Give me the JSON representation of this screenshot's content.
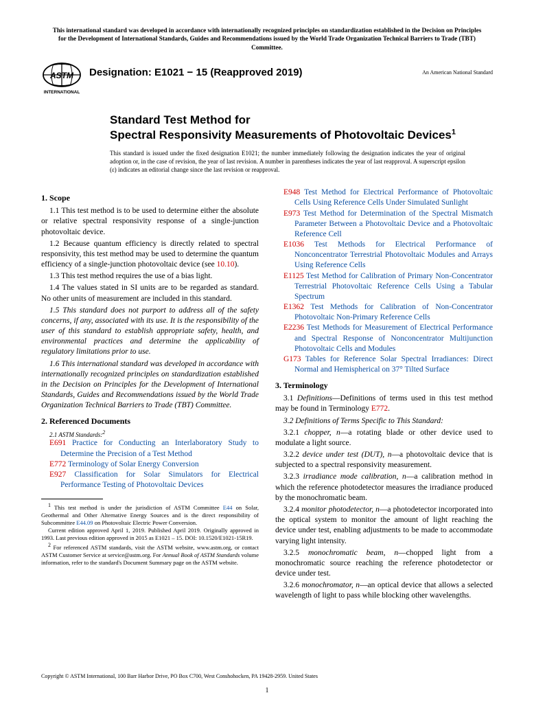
{
  "banner": "This international standard was developed in accordance with internationally recognized principles on standardization established in the Decision on Principles for the Development of International Standards, Guides and Recommendations issued by the World Trade Organization Technical Barriers to Trade (TBT) Committee.",
  "designation": "Designation: E1021 − 15 (Reapproved 2019)",
  "ans": "An American National Standard",
  "title_line1": "Standard Test Method for",
  "title_line2": "Spectral Responsivity Measurements of Photovoltaic Devices",
  "title_sup": "1",
  "issuance": "This standard is issued under the fixed designation E1021; the number immediately following the designation indicates the year of original adoption or, in the case of revision, the year of last revision. A number in parentheses indicates the year of last reapproval. A superscript epsilon (ε) indicates an editorial change since the last revision or reapproval.",
  "s1_head": "1. Scope",
  "s1_1": "1.1 This test method is to be used to determine either the absolute or relative spectral responsivity response of a single-junction photovoltaic device.",
  "s1_2a": "1.2 Because quantum efficiency is directly related to spectral responsivity, this test method may be used to determine the quantum efficiency of a single-junction photovoltaic device (see ",
  "s1_2_ref": "10.10",
  "s1_2b": ").",
  "s1_3": "1.3 This test method requires the use of a bias light.",
  "s1_4": "1.4 The values stated in SI units are to be regarded as standard. No other units of measurement are included in this standard.",
  "s1_5": "1.5 This standard does not purport to address all of the safety concerns, if any, associated with its use. It is the responsibility of the user of this standard to establish appropriate safety, health, and environmental practices and determine the applicability of regulatory limitations prior to use.",
  "s1_6": "1.6 This international standard was developed in accordance with internationally recognized principles on standardization established in the Decision on Principles for the Development of International Standards, Guides and Recommendations issued by the World Trade Organization Technical Barriers to Trade (TBT) Committee.",
  "s2_head": "2. Referenced Documents",
  "s2_sub": "ASTM Standards:",
  "s2_sup": "2",
  "refs_left": [
    {
      "code": "E691",
      "title": "Practice for Conducting an Interlaboratory Study to Determine the Precision of a Test Method"
    },
    {
      "code": "E772",
      "title": "Terminology of Solar Energy Conversion"
    },
    {
      "code": "E927",
      "title": "Classification for Solar Simulators for Electrical Performance Testing of Photovoltaic Devices"
    }
  ],
  "refs_right": [
    {
      "code": "E948",
      "title": "Test Method for Electrical Performance of Photovoltaic Cells Using Reference Cells Under Simulated Sunlight"
    },
    {
      "code": "E973",
      "title": "Test Method for Determination of the Spectral Mismatch Parameter Between a Photovoltaic Device and a Photovoltaic Reference Cell"
    },
    {
      "code": "E1036",
      "title": "Test Methods for Electrical Performance of Nonconcentrator Terrestrial Photovoltaic Modules and Arrays Using Reference Cells"
    },
    {
      "code": "E1125",
      "title": "Test Method for Calibration of Primary Non-Concentrator Terrestrial Photovoltaic Reference Cells Using a Tabular Spectrum"
    },
    {
      "code": "E1362",
      "title": "Test Methods for Calibration of Non-Concentrator Photovoltaic Non-Primary Reference Cells"
    },
    {
      "code": "E2236",
      "title": "Test Methods for Measurement of Electrical Performance and Spectral Response of Nonconcentrator Multijunction Photovoltaic Cells and Modules"
    },
    {
      "code": "G173",
      "title": "Tables for Reference Solar Spectral Irradiances: Direct Normal and Hemispherical on 37° Tilted Surface"
    }
  ],
  "s3_head": "3. Terminology",
  "s3_1a": "3.1 ",
  "s3_1_defs": "Definitions",
  "s3_1b": "—Definitions of terms used in this test method may be found in Terminology ",
  "s3_1_ref": "E772",
  "s3_1c": ".",
  "s3_2_head": "3.2 Definitions of Terms Specific to This Standard:",
  "terms": [
    {
      "num": "3.2.1",
      "term": "chopper, n",
      "def": "—a rotating blade or other device used to modulate a light source."
    },
    {
      "num": "3.2.2",
      "term": "device under test (DUT), n",
      "def": "—a photovoltaic device that is subjected to a spectral responsivity measurement."
    },
    {
      "num": "3.2.3",
      "term": "irradiance mode calibration, n",
      "def": "—a calibration method in which the reference photodetector measures the irradiance produced by the monochromatic beam."
    },
    {
      "num": "3.2.4",
      "term": "monitor photodetector, n",
      "def": "—a photodetector incorporated into the optical system to monitor the amount of light reaching the device under test, enabling adjustments to be made to accommodate varying light intensity."
    },
    {
      "num": "3.2.5",
      "term": "monochromatic beam, n",
      "def": "—chopped light from a monochromatic source reaching the reference photodetector or device under test."
    },
    {
      "num": "3.2.6",
      "term": "monochromator, n",
      "def": "—an optical device that allows a selected wavelength of light to pass while blocking other wavelengths."
    }
  ],
  "fn1a": "This test method is under the jurisdiction of ASTM Committee ",
  "fn1_e44": "E44",
  "fn1b": " on Solar, Geothermal and Other Alternative Energy Sources and is the direct responsibility of Subcommittee ",
  "fn1_e4409": "E44.09",
  "fn1c": " on Photovoltaic Electric Power Conversion.",
  "fn1d": "Current edition approved April 1, 2019. Published April 2019. Originally approved in 1993. Last previous edition approved in 2015 as E1021 – 15. DOI: 10.1520/E1021-15R19.",
  "fn2a": "For referenced ASTM standards, visit the ASTM website, www.astm.org, or contact ASTM Customer Service at service@astm.org. For ",
  "fn2_it": "Annual Book of ASTM Standards",
  "fn2b": " volume information, refer to the standard's Document Summary page on the ASTM website.",
  "copyright": "Copyright © ASTM International, 100 Barr Harbor Drive, PO Box C700, West Conshohocken, PA 19428-2959. United States",
  "pagenum": "1"
}
